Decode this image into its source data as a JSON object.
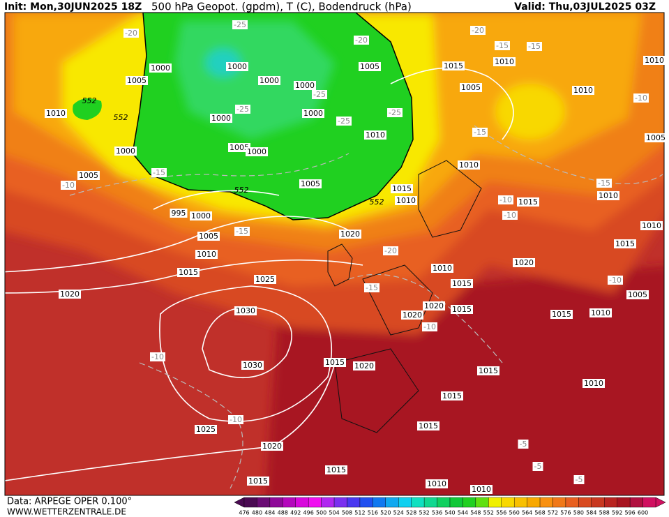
{
  "header": {
    "init": "Init: Mon,30JUN2025 18Z",
    "title": "500 hPa Geopot. (gpdm), T (C), Bodendruck (hPa)",
    "valid": "Valid: Thu,03JUL2025 03Z"
  },
  "footer": {
    "data_source": "Data: ARPEGE OPER 0.100°",
    "website": "WWW.WETTERZENTRALE.DE"
  },
  "colorbar": {
    "values": [
      476,
      480,
      484,
      488,
      492,
      496,
      500,
      504,
      508,
      512,
      516,
      520,
      524,
      528,
      532,
      536,
      540,
      544,
      548,
      552,
      556,
      560,
      564,
      568,
      572,
      576,
      580,
      584,
      588,
      592,
      596,
      600
    ],
    "colors": [
      "#4a0a52",
      "#6a0c74",
      "#8e0a98",
      "#b408bc",
      "#d808dc",
      "#f010f0",
      "#b028f0",
      "#7a30f0",
      "#4a38f0",
      "#2050f0",
      "#1078f0",
      "#10a8f0",
      "#10d0f0",
      "#10e0c0",
      "#10d890",
      "#10d060",
      "#10c838",
      "#20d020",
      "#60e010",
      "#f0f000",
      "#f8d800",
      "#f8c000",
      "#f8a800",
      "#f89010",
      "#f07818",
      "#e86020",
      "#d84a20",
      "#c83820",
      "#b82420",
      "#a81420",
      "#b01040",
      "#d01060"
    ]
  },
  "pressure_labels": [
    "1000",
    "1005",
    "1010",
    "1000",
    "1000",
    "1000",
    "1000",
    "1000",
    "1005",
    "1000",
    "1000",
    "1005",
    "1005",
    "1005",
    "1010",
    "1015",
    "1010",
    "1005",
    "1010",
    "1010",
    "1010",
    "1015",
    "1010",
    "995",
    "1000",
    "1005",
    "1010",
    "1015",
    "1020",
    "1025",
    "1020",
    "1030",
    "1030",
    "1025",
    "1020",
    "1015",
    "1015",
    "1020",
    "1015",
    "1015",
    "1015",
    "1010",
    "1010",
    "1010",
    "1015",
    "1020",
    "1020",
    "1015",
    "1020",
    "1015",
    "1010",
    "1010",
    "1015",
    "1015",
    "1010",
    "1005",
    "1010",
    "1015",
    "1005"
  ],
  "temperature_labels": [
    "-25",
    "-20",
    "-20",
    "-15",
    "-15",
    "-25",
    "-25",
    "-25",
    "-25",
    "-15",
    "-15",
    "-10",
    "-15",
    "-10",
    "-10",
    "-15",
    "-20",
    "-15",
    "-10",
    "-10",
    "-10",
    "-10",
    "-10",
    "-5",
    "-5",
    "-5",
    "-20"
  ],
  "height_labels": [
    "552",
    "552",
    "552",
    "552"
  ]
}
